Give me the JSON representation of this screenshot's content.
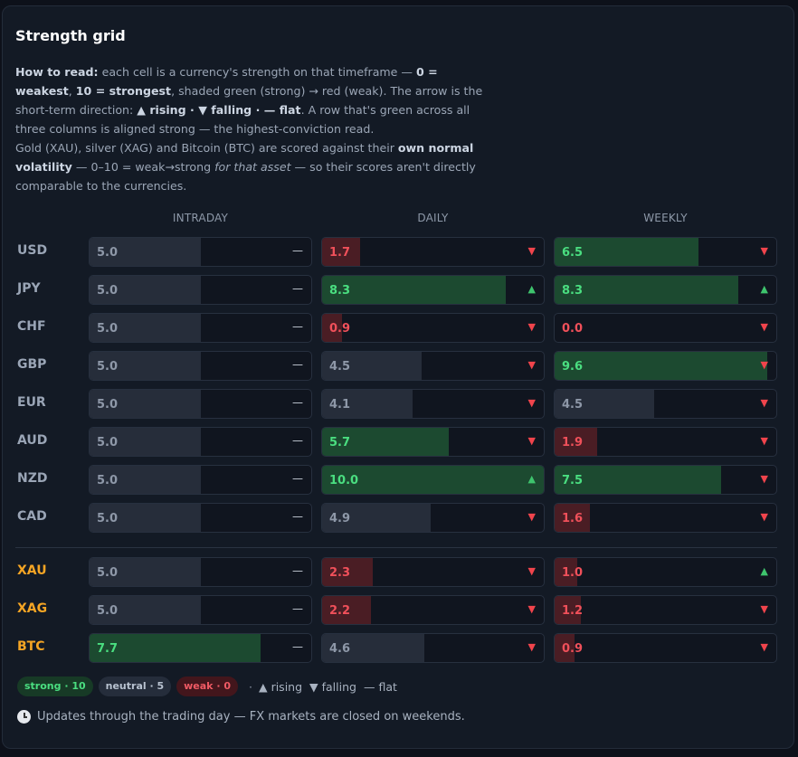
{
  "title": "Strength grid",
  "intro": {
    "p1": [
      {
        "t": "How to read:",
        "s": "b"
      },
      {
        "t": " each cell is a currency's strength on that timeframe — "
      },
      {
        "t": "0 = weakest",
        "s": "b"
      },
      {
        "t": ", "
      },
      {
        "t": "10 = strongest",
        "s": "b"
      },
      {
        "t": ", shaded green (strong) → red (weak). The arrow is the short-term direction: "
      },
      {
        "t": "▲ rising · ▼ falling · — flat",
        "s": "b"
      },
      {
        "t": ". A row that's green across all three columns is aligned strong — the highest-conviction read."
      }
    ],
    "p2": [
      {
        "t": "Gold (XAU), silver (XAG) and Bitcoin (BTC) are scored against their "
      },
      {
        "t": "own normal volatility",
        "s": "b"
      },
      {
        "t": " — 0–10 = weak→strong "
      },
      {
        "t": "for that asset",
        "s": "i"
      },
      {
        "t": " — so their scores aren't directly comparable to the currencies."
      }
    ]
  },
  "columns": [
    "INTRADAY",
    "DAILY",
    "WEEKLY"
  ],
  "rows": [
    {
      "symbol": "USD",
      "group": "fx",
      "cells": [
        {
          "value": "5.0",
          "dir": "flat"
        },
        {
          "value": "1.7",
          "dir": "down"
        },
        {
          "value": "6.5",
          "dir": "down"
        }
      ]
    },
    {
      "symbol": "JPY",
      "group": "fx",
      "cells": [
        {
          "value": "5.0",
          "dir": "flat"
        },
        {
          "value": "8.3",
          "dir": "up"
        },
        {
          "value": "8.3",
          "dir": "up"
        }
      ]
    },
    {
      "symbol": "CHF",
      "group": "fx",
      "cells": [
        {
          "value": "5.0",
          "dir": "flat"
        },
        {
          "value": "0.9",
          "dir": "down"
        },
        {
          "value": "0.0",
          "dir": "down"
        }
      ]
    },
    {
      "symbol": "GBP",
      "group": "fx",
      "cells": [
        {
          "value": "5.0",
          "dir": "flat"
        },
        {
          "value": "4.5",
          "dir": "down"
        },
        {
          "value": "9.6",
          "dir": "down"
        }
      ]
    },
    {
      "symbol": "EUR",
      "group": "fx",
      "cells": [
        {
          "value": "5.0",
          "dir": "flat"
        },
        {
          "value": "4.1",
          "dir": "down"
        },
        {
          "value": "4.5",
          "dir": "down"
        }
      ]
    },
    {
      "symbol": "AUD",
      "group": "fx",
      "cells": [
        {
          "value": "5.0",
          "dir": "flat"
        },
        {
          "value": "5.7",
          "dir": "down"
        },
        {
          "value": "1.9",
          "dir": "down"
        }
      ]
    },
    {
      "symbol": "NZD",
      "group": "fx",
      "cells": [
        {
          "value": "5.0",
          "dir": "flat"
        },
        {
          "value": "10.0",
          "dir": "up"
        },
        {
          "value": "7.5",
          "dir": "down"
        }
      ]
    },
    {
      "symbol": "CAD",
      "group": "fx",
      "cells": [
        {
          "value": "5.0",
          "dir": "flat"
        },
        {
          "value": "4.9",
          "dir": "down"
        },
        {
          "value": "1.6",
          "dir": "down"
        }
      ]
    },
    {
      "symbol": "XAU",
      "group": "asset",
      "cells": [
        {
          "value": "5.0",
          "dir": "flat"
        },
        {
          "value": "2.3",
          "dir": "down"
        },
        {
          "value": "1.0",
          "dir": "up"
        }
      ]
    },
    {
      "symbol": "XAG",
      "group": "asset",
      "cells": [
        {
          "value": "5.0",
          "dir": "flat"
        },
        {
          "value": "2.2",
          "dir": "down"
        },
        {
          "value": "1.2",
          "dir": "down"
        }
      ]
    },
    {
      "symbol": "BTC",
      "group": "asset",
      "cells": [
        {
          "value": "7.7",
          "dir": "flat"
        },
        {
          "value": "4.6",
          "dir": "down"
        },
        {
          "value": "0.9",
          "dir": "down"
        }
      ]
    }
  ],
  "arrows": {
    "up": "▲",
    "down": "▼",
    "flat": "—"
  },
  "legend": {
    "strong": "strong · 10",
    "neutral": "neutral · 5",
    "weak": "weak · 0",
    "dot": "·",
    "rising": "▲ rising",
    "falling": "▼ falling",
    "flat": "— flat"
  },
  "footer": {
    "icon": "clock-icon",
    "text": "Updates through the trading day — FX markets are closed on weekends."
  },
  "colors": {
    "strong_fill": "#1c4a30",
    "neutral_fill": "#262d3a",
    "weak_fill": "#4a1d24",
    "strong_text": "#4ade80",
    "neutral_text": "#8e98a8",
    "weak_text": "#f0505a"
  }
}
